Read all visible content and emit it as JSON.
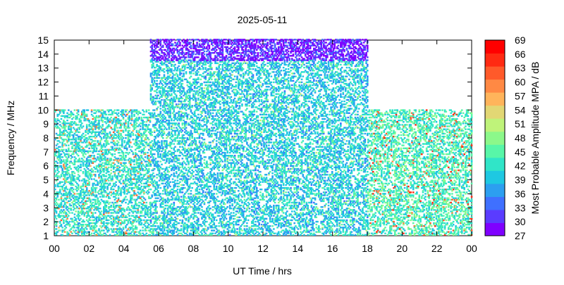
{
  "chart_data": {
    "type": "heatmap",
    "title": "2025-05-11",
    "xlabel": "UT Time / hrs",
    "ylabel": "Frequency / MHz",
    "colorbar_label": "Most Probable Amplitude MPA / dB",
    "x_ticks": [
      "00",
      "02",
      "04",
      "06",
      "08",
      "10",
      "12",
      "14",
      "16",
      "18",
      "20",
      "22",
      "00"
    ],
    "xlim": [
      0,
      24
    ],
    "y_ticks": [
      1,
      2,
      3,
      4,
      5,
      6,
      7,
      8,
      9,
      10,
      11,
      12,
      13,
      14,
      15
    ],
    "ylim": [
      1,
      15
    ],
    "colorbar_ticks": [
      27,
      30,
      33,
      36,
      39,
      42,
      45,
      48,
      51,
      54,
      57,
      60,
      63,
      66,
      69
    ],
    "colorbar_range": [
      27,
      69
    ],
    "colorbar_colors": [
      "#7f00ff",
      "#5a3cff",
      "#3f70ff",
      "#2c9ff0",
      "#1ec8e2",
      "#30e5c8",
      "#58f6a8",
      "#8cf88a",
      "#bff37a",
      "#e2d774",
      "#ffb45b",
      "#ff8944",
      "#ff5a2a",
      "#ff2a12",
      "#ff0000"
    ],
    "grid": false,
    "legend": "colorbar-right",
    "summary_regions": [
      {
        "x": [
          0,
          5.5
        ],
        "y": [
          1,
          10
        ],
        "dominant_db": 42,
        "peak_db": 63
      },
      {
        "x": [
          5.5,
          18
        ],
        "y": [
          1,
          13.5
        ],
        "dominant_db": 40,
        "peak_db": 51
      },
      {
        "x": [
          5.5,
          18
        ],
        "y": [
          13.5,
          15
        ],
        "dominant_db": 30,
        "peak_db": 33
      },
      {
        "x": [
          18,
          24
        ],
        "y": [
          1,
          10
        ],
        "dominant_db": 44,
        "peak_db": 66
      }
    ]
  }
}
